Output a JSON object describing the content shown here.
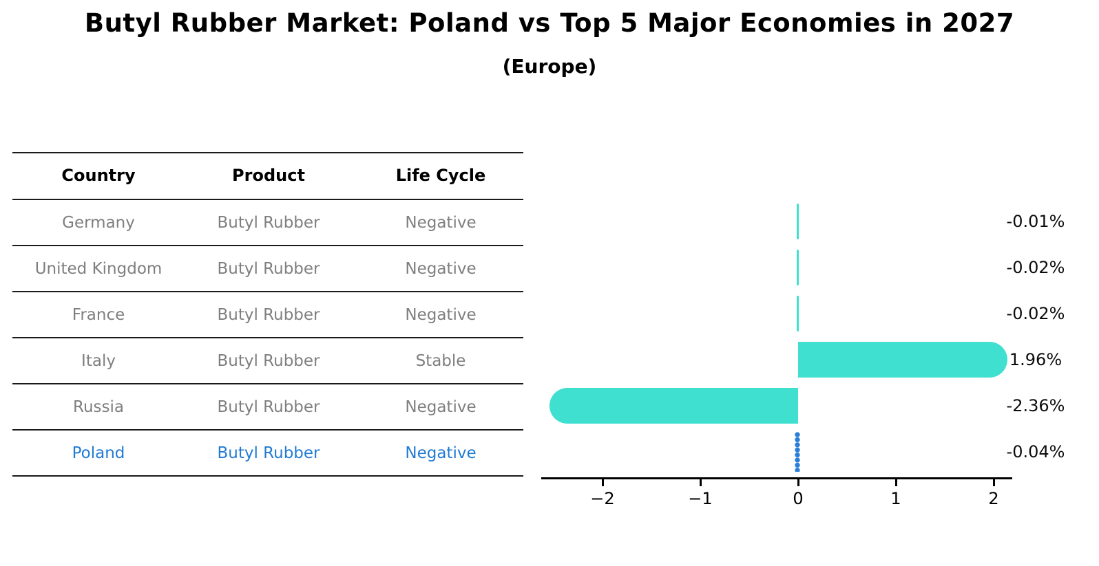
{
  "title": "Butyl Rubber Market: Poland vs Top 5 Major Economies in 2027",
  "subtitle": "(Europe)",
  "colors": {
    "bar": "#40E0D0",
    "poland_marker": "#2b7fd9",
    "highlight_text": "#217bd4",
    "row_text": "#7f7f7f",
    "header_text": "#000000",
    "axis": "#000000",
    "value_text": "#0d0d0d"
  },
  "table": {
    "headers": [
      "Country",
      "Product",
      "Life Cycle"
    ],
    "rows": [
      {
        "country": "Germany",
        "product": "Butyl Rubber",
        "life_cycle": "Negative",
        "highlight": false
      },
      {
        "country": "United Kingdom",
        "product": "Butyl Rubber",
        "life_cycle": "Negative",
        "highlight": false
      },
      {
        "country": "France",
        "product": "Butyl Rubber",
        "life_cycle": "Negative",
        "highlight": false
      },
      {
        "country": "Italy",
        "product": "Butyl Rubber",
        "life_cycle": "Stable",
        "highlight": false
      },
      {
        "country": "Russia",
        "product": "Butyl Rubber",
        "life_cycle": "Negative",
        "highlight": false
      },
      {
        "country": "Poland",
        "product": "Butyl Rubber",
        "life_cycle": "Negative",
        "highlight": true
      }
    ]
  },
  "chart_data": {
    "type": "bar",
    "orientation": "horizontal",
    "title": "Butyl Rubber Market: Poland vs Top 5 Major Economies in 2027",
    "subtitle": "(Europe)",
    "categories": [
      "Germany",
      "United Kingdom",
      "France",
      "Italy",
      "Russia",
      "Poland"
    ],
    "values": [
      -0.01,
      -0.02,
      -0.02,
      1.96,
      -2.36,
      -0.04
    ],
    "value_labels": [
      "-0.01%",
      "-0.02%",
      "-0.02%",
      "1.96%",
      "-2.36%",
      "-0.04%"
    ],
    "units": "percent",
    "highlight_category": "Poland",
    "highlight_style": "dotted-vertical-marker",
    "x_ticks": [
      {
        "value": -2,
        "label": "−2"
      },
      {
        "value": -1,
        "label": "−1"
      },
      {
        "value": 0,
        "label": "0"
      },
      {
        "value": 1,
        "label": "1"
      },
      {
        "value": 2,
        "label": "2"
      }
    ],
    "xlim": [
      -2.62,
      2.19
    ],
    "grid": false,
    "legend": false
  }
}
